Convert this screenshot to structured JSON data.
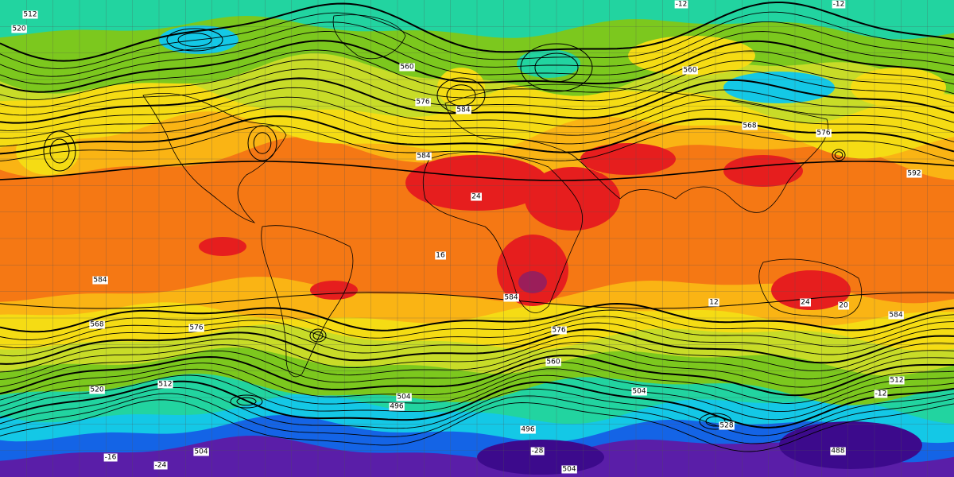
{
  "contour_labels": [
    "512",
    "520",
    "584",
    "576",
    "560",
    "584",
    "592",
    "584",
    "568",
    "576",
    "584",
    "576",
    "560",
    "520",
    "512",
    "504",
    "496",
    "504",
    "528",
    "496",
    "488",
    "504",
    "504",
    "512",
    "560",
    "568",
    "576",
    "584",
    "-12",
    "-12",
    "24",
    "24",
    "20",
    "16",
    "12",
    "-16",
    "-28",
    "-24",
    "-12"
  ]
}
